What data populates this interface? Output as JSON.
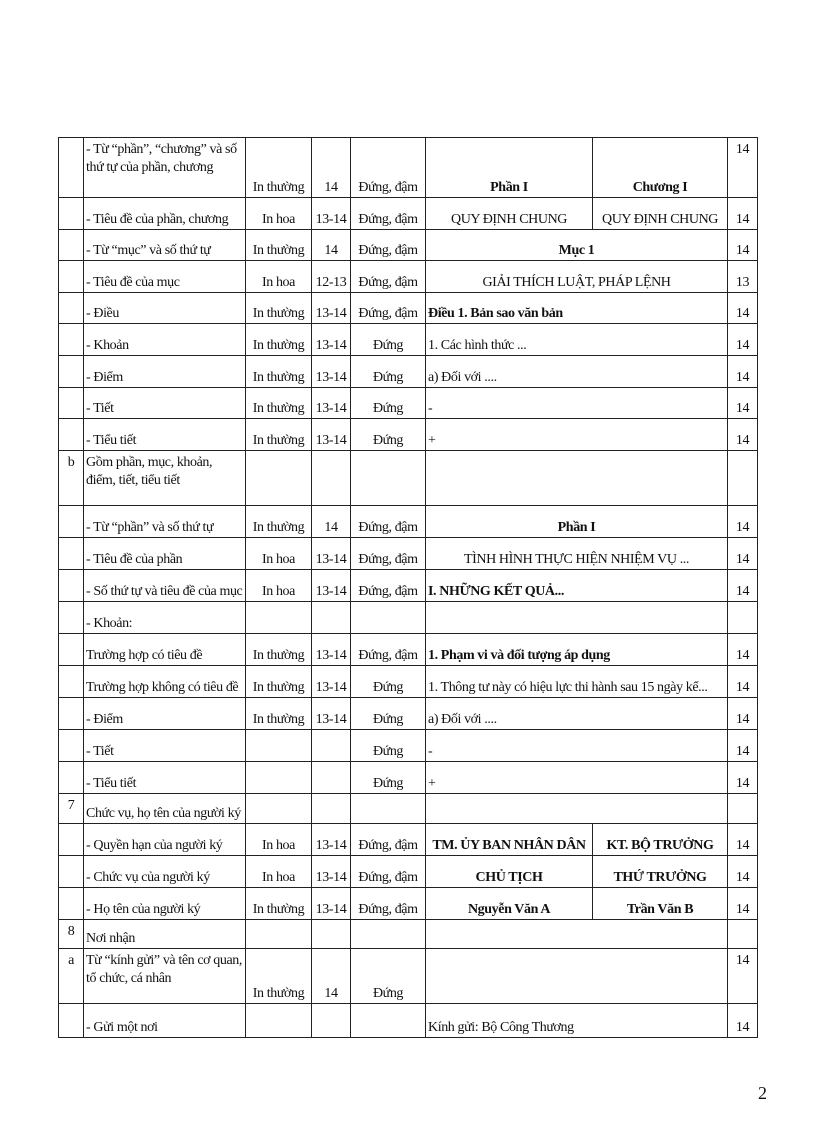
{
  "page_number": "2",
  "rows": [
    {
      "no": "",
      "item": "- Từ “phần”, “chương” và số thứ tự của phần, chương",
      "style": "In thường",
      "size": "14",
      "type": "Đứng, đậm",
      "examples": [
        "Phần I",
        "Chương I"
      ],
      "align": "c",
      "bold": true,
      "ex_size": "14"
    },
    {
      "no": "",
      "item": "- Tiêu đề của phần, chương",
      "style": "In hoa",
      "size": "13-14",
      "type": "Đứng, đậm",
      "examples": [
        "QUY ĐỊNH CHUNG",
        "QUY ĐỊNH CHUNG"
      ],
      "align": "c",
      "bold": false,
      "ex_size": "14"
    },
    {
      "no": "",
      "item": "- Từ “mục” và số thứ tự",
      "style": "In thường",
      "size": "14",
      "type": "Đứng, đậm",
      "examples": [
        "Mục 1"
      ],
      "align": "c",
      "bold": true,
      "ex_size": "14"
    },
    {
      "no": "",
      "item": "- Tiêu đề của mục",
      "style": "In hoa",
      "size": "12-13",
      "type": "Đứng, đậm",
      "examples": [
        "GIẢI THÍCH LUẬT, PHÁP LỆNH"
      ],
      "align": "c",
      "bold": false,
      "ex_size": "13"
    },
    {
      "no": "",
      "item": "- Điều",
      "style": "In thường",
      "size": "13-14",
      "type": "Đứng, đậm",
      "examples": [
        "Điều 1. Bản sao văn bản"
      ],
      "align": "l",
      "bold": true,
      "ex_size": "14"
    },
    {
      "no": "",
      "item": "- Khoản",
      "style": "In thường",
      "size": "13-14",
      "type": "Đứng",
      "examples": [
        "1. Các hình thức ..."
      ],
      "align": "l",
      "bold": false,
      "ex_size": "14"
    },
    {
      "no": "",
      "item": "- Điểm",
      "style": "In thường",
      "size": "13-14",
      "type": "Đứng",
      "examples": [
        "a) Đối với ...."
      ],
      "align": "l",
      "bold": false,
      "ex_size": "14"
    },
    {
      "no": "",
      "item": "- Tiết",
      "style": "In thường",
      "size": "13-14",
      "type": "Đứng",
      "examples": [
        "-"
      ],
      "align": "l",
      "bold": false,
      "ex_size": "14"
    },
    {
      "no": "",
      "item": "- Tiểu tiết",
      "style": "In thường",
      "size": "13-14",
      "type": "Đứng",
      "examples": [
        "+"
      ],
      "align": "l",
      "bold": false,
      "ex_size": "14"
    },
    {
      "no": "b",
      "item": "Gồm phần, mục, khoản, điểm, tiết, tiểu tiết",
      "style": "",
      "size": "",
      "type": "",
      "examples": [
        ""
      ],
      "align": "l",
      "bold": false,
      "ex_size": ""
    },
    {
      "no": "",
      "item": "- Từ “phần” và số thứ tự",
      "style": "In thường",
      "size": "14",
      "type": "Đứng, đậm",
      "examples": [
        "Phần I"
      ],
      "align": "c",
      "bold": true,
      "ex_size": "14"
    },
    {
      "no": "",
      "item": "- Tiêu đề của phần",
      "style": "In hoa",
      "size": "13-14",
      "type": "Đứng, đậm",
      "examples": [
        "TÌNH HÌNH THỰC HIỆN NHIỆM VỤ ..."
      ],
      "align": "c",
      "bold": false,
      "ex_size": "14"
    },
    {
      "no": "",
      "item": "- Số thứ tự và tiêu đề của mục",
      "style": "In hoa",
      "size": "13-14",
      "type": "Đứng, đậm",
      "examples": [
        "I. NHỮNG KẾT QUẢ..."
      ],
      "align": "l",
      "bold": true,
      "ex_size": "14"
    },
    {
      "no": "",
      "item": "- Khoản:",
      "style": "",
      "size": "",
      "type": "",
      "examples": [
        ""
      ],
      "align": "l",
      "bold": false,
      "ex_size": ""
    },
    {
      "no": "",
      "item": "Trường hợp có tiêu đề",
      "style": "In thường",
      "size": "13-14",
      "type": "Đứng, đậm",
      "examples": [
        "1. Phạm vi và đối tượng áp dụng"
      ],
      "align": "l",
      "bold": true,
      "ex_size": "14"
    },
    {
      "no": "",
      "item": "Trường hợp không có tiêu đề",
      "style": "In thường",
      "size": "13-14",
      "type": "Đứng",
      "examples": [
        "1. Thông tư này có hiệu lực thi hành sau 15 ngày kể..."
      ],
      "align": "l",
      "bold": false,
      "ex_size": "14"
    },
    {
      "no": "",
      "item": "- Điểm",
      "style": "In thường",
      "size": "13-14",
      "type": "Đứng",
      "examples": [
        "a) Đối với ...."
      ],
      "align": "l",
      "bold": false,
      "ex_size": "14"
    },
    {
      "no": "",
      "item": "- Tiết",
      "style": "",
      "size": "",
      "type": "Đứng",
      "examples": [
        "-"
      ],
      "align": "l",
      "bold": false,
      "ex_size": "14"
    },
    {
      "no": "",
      "item": "- Tiểu tiết",
      "style": "",
      "size": "",
      "type": "Đứng",
      "examples": [
        "+"
      ],
      "align": "l",
      "bold": false,
      "ex_size": "14"
    },
    {
      "no": "7",
      "item": "Chức vụ, họ tên của người ký",
      "style": "",
      "size": "",
      "type": "",
      "examples": [
        ""
      ],
      "align": "l",
      "bold": false,
      "ex_size": ""
    },
    {
      "no": "",
      "item": "- Quyền hạn của người ký",
      "style": "In hoa",
      "size": "13-14",
      "type": "Đứng, đậm",
      "examples": [
        "TM. ỦY BAN NHÂN DÂN",
        "KT. BỘ TRƯỞNG"
      ],
      "align": "c",
      "bold": true,
      "ex_size": "14"
    },
    {
      "no": "",
      "item": "- Chức vụ của người ký",
      "style": "In hoa",
      "size": "13-14",
      "type": "Đứng, đậm",
      "examples": [
        "CHỦ TỊCH",
        "THỨ TRƯỞNG"
      ],
      "align": "c",
      "bold": true,
      "ex_size": "14"
    },
    {
      "no": "",
      "item": "- Họ tên của người ký",
      "style": "In thường",
      "size": "13-14",
      "type": "Đứng, đậm",
      "examples": [
        "Nguyễn Văn A",
        "Trần Văn B"
      ],
      "align": "c",
      "bold": true,
      "ex_size": "14"
    },
    {
      "no": "8",
      "item": "Nơi nhận",
      "style": "",
      "size": "",
      "type": "",
      "examples": [
        ""
      ],
      "align": "l",
      "bold": false,
      "ex_size": ""
    },
    {
      "no": "a",
      "item": "Từ “kính gửi” và tên cơ quan, tổ chức, cá nhân",
      "style": "In thường",
      "size": "14",
      "type": "Đứng",
      "examples": [
        ""
      ],
      "align": "l",
      "bold": false,
      "ex_size": "14"
    },
    {
      "no": "",
      "item": "- Gửi một nơi",
      "style": "",
      "size": "",
      "type": "",
      "examples": [
        "Kính gửi: Bộ Công Thương"
      ],
      "align": "l",
      "bold": false,
      "ex_size": "14"
    }
  ]
}
